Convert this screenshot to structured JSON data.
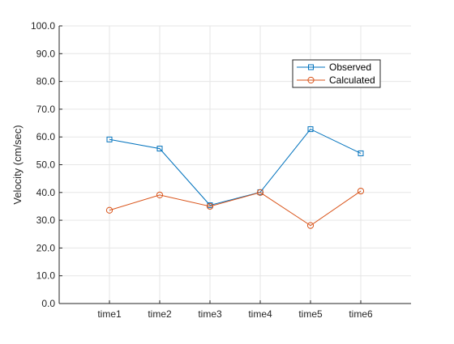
{
  "chart_data": {
    "type": "line",
    "title": "",
    "xlabel": "",
    "ylabel": "Velocity (cm/sec)",
    "categories": [
      "time1",
      "time2",
      "time3",
      "time4",
      "time5",
      "time6"
    ],
    "ylim": [
      0,
      100
    ],
    "yticks": [
      "0.0",
      "10.0",
      "20.0",
      "30.0",
      "40.0",
      "50.0",
      "60.0",
      "70.0",
      "80.0",
      "90.0",
      "100.0"
    ],
    "grid": true,
    "legend_position": "top-right",
    "series": [
      {
        "name": "Observed",
        "values": [
          59.1,
          55.8,
          35.4,
          40.1,
          62.8,
          54.1
        ],
        "color": "#0072BD",
        "marker": "square"
      },
      {
        "name": "Calculated",
        "values": [
          33.6,
          39.1,
          35.0,
          40.0,
          28.1,
          40.5
        ],
        "color": "#D95319",
        "marker": "circle"
      }
    ]
  }
}
